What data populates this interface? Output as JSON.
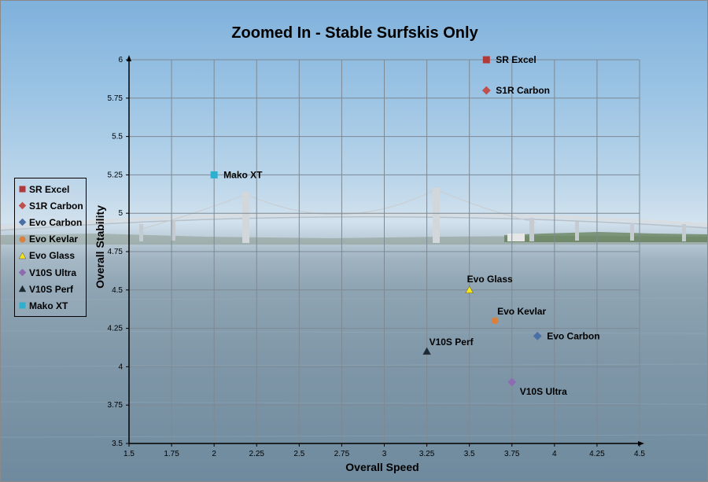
{
  "chart_data": {
    "type": "scatter",
    "title": "Zoomed In - Stable Surfskis Only",
    "xlabel": "Overall Speed",
    "ylabel": "Overall Stability",
    "xlim": [
      1.5,
      4.5
    ],
    "ylim": [
      3.5,
      6
    ],
    "xticks": [
      "1.5",
      "1.75",
      "2",
      "2.25",
      "2.5",
      "2.75",
      "3",
      "3.25",
      "3.5",
      "3.75",
      "4",
      "4.25",
      "4.5"
    ],
    "yticks": [
      "3.5",
      "3.75",
      "4",
      "4.25",
      "4.5",
      "4.75",
      "5",
      "5.25",
      "5.5",
      "5.75",
      "6"
    ],
    "grid": true,
    "legend_position": "left",
    "series": [
      {
        "name": "SR Excel",
        "x": 3.6,
        "y": 6.0,
        "marker": "square",
        "color": "#b03a3a",
        "label_side": "right"
      },
      {
        "name": "S1R Carbon",
        "x": 3.6,
        "y": 5.8,
        "marker": "diamond",
        "color": "#c0504d",
        "label_side": "right"
      },
      {
        "name": "Evo Carbon",
        "x": 3.9,
        "y": 4.2,
        "marker": "diamond",
        "color": "#4a6fa5",
        "label_side": "right"
      },
      {
        "name": "Evo Kevlar",
        "x": 3.65,
        "y": 4.3,
        "marker": "circle",
        "color": "#d9803f",
        "label_side": "above-right"
      },
      {
        "name": "Evo Glass",
        "x": 3.5,
        "y": 4.5,
        "marker": "triangle",
        "color": "#f5e31b",
        "label_side": "above"
      },
      {
        "name": "V10S Ultra",
        "x": 3.75,
        "y": 3.9,
        "marker": "diamond",
        "color": "#8e6bb0",
        "label_side": "below-right"
      },
      {
        "name": "V10S Perf",
        "x": 3.25,
        "y": 4.1,
        "marker": "triangle",
        "color": "#1a2a36",
        "label_side": "above-right"
      },
      {
        "name": "Mako XT",
        "x": 2.0,
        "y": 5.25,
        "marker": "square",
        "color": "#2bb0d0",
        "label_side": "right"
      }
    ]
  }
}
